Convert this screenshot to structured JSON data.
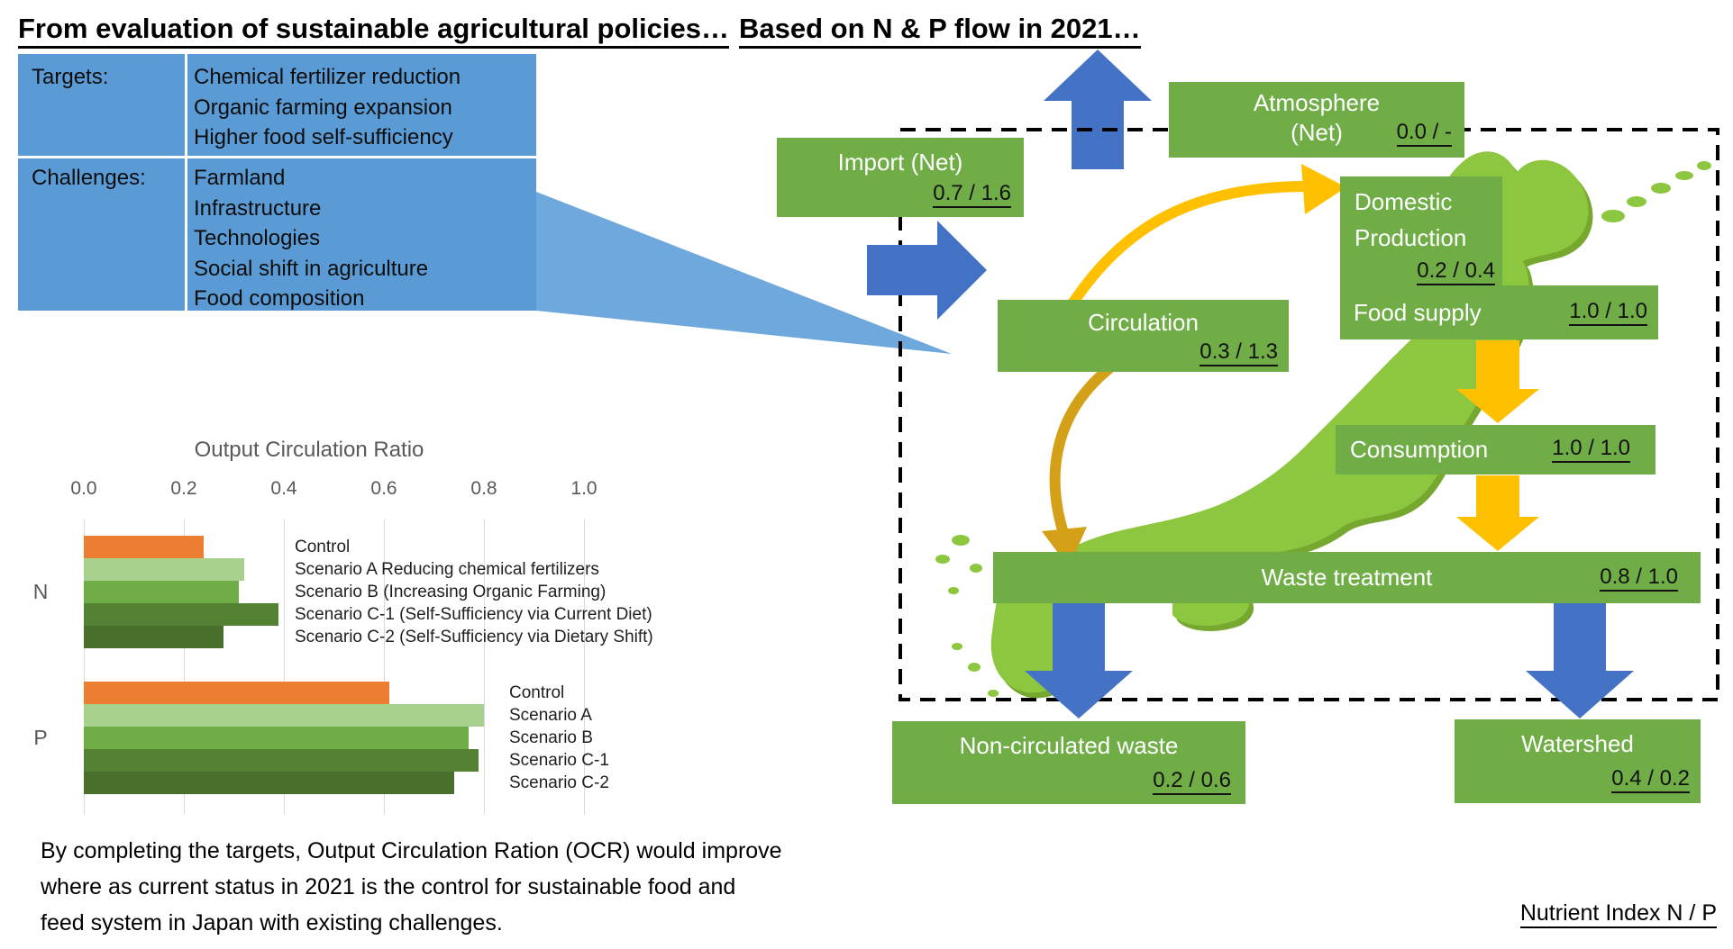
{
  "slide": {
    "left_title": "From evaluation of sustainable agricultural policies…",
    "right_title": "Based on N & P flow in 2021…",
    "note_lines": [
      "By completing the targets, Output Circulation Ration (OCR) would improve",
      "where as current status in 2021 is the control for sustainable food and",
      "feed system in Japan with existing challenges."
    ],
    "nutrient_legend": "Nutrient Index N / P"
  },
  "policy_table": {
    "rows": [
      {
        "label": "Targets:",
        "items": [
          "Chemical fertilizer reduction",
          "Organic farming expansion",
          "Higher food self-sufficiency"
        ]
      },
      {
        "label": "Challenges:",
        "items": [
          "Farmland",
          "Infrastructure",
          "Technologies",
          "Social shift in agriculture",
          "Food composition"
        ]
      }
    ]
  },
  "flow": {
    "import": {
      "label": "Import (Net)",
      "value": "0.7 / 1.6"
    },
    "atmosphere": {
      "line1": "Atmosphere",
      "line2": "(Net)",
      "value": "0.0 / -"
    },
    "circulation": {
      "label": "Circulation",
      "value": "0.3 / 1.3"
    },
    "domestic_production": {
      "line1": "Domestic",
      "line2": "Production",
      "value": "0.2 / 0.4"
    },
    "food_supply": {
      "label": "Food supply",
      "value": "1.0 / 1.0"
    },
    "consumption": {
      "label": "Consumption",
      "value": "1.0 / 1.0"
    },
    "waste_treatment": {
      "label": "Waste treatment",
      "value": "0.8 / 1.0"
    },
    "non_circulated_waste": {
      "label": "Non-circulated waste",
      "value": "0.2 / 0.6"
    },
    "watershed": {
      "label": "Watershed",
      "value": "0.4 / 0.2"
    }
  },
  "chart_data": {
    "type": "bar",
    "orientation": "horizontal",
    "title": "Output Circulation Ratio",
    "xlabel": "",
    "ylabel": "",
    "xlim": [
      0.0,
      1.0
    ],
    "x_ticks": [
      "0.0",
      "0.2",
      "0.4",
      "0.6",
      "0.8",
      "1.0"
    ],
    "grid": true,
    "groups": [
      {
        "category": "N",
        "bars": [
          {
            "label": "Control",
            "value": 0.24,
            "color": "#ED7D31"
          },
          {
            "label": "Scenario A Reducing chemical fertilizers",
            "value": 0.32,
            "color": "#A9D18E"
          },
          {
            "label": "Scenario B (Increasing Organic Farming)",
            "value": 0.31,
            "color": "#70AD47"
          },
          {
            "label": "Scenario C-1 (Self-Sufficiency via Current Diet)",
            "value": 0.39,
            "color": "#548235"
          },
          {
            "label": "Scenario C-2 (Self-Sufficiency via Dietary Shift)",
            "value": 0.28,
            "color": "#48702C"
          }
        ]
      },
      {
        "category": "P",
        "bars": [
          {
            "label": "Control",
            "value": 0.61,
            "color": "#ED7D31"
          },
          {
            "label": "Scenario A",
            "value": 0.8,
            "color": "#A9D18E"
          },
          {
            "label": "Scenario B",
            "value": 0.77,
            "color": "#70AD47"
          },
          {
            "label": "Scenario C-1",
            "value": 0.79,
            "color": "#548235"
          },
          {
            "label": "Scenario C-2",
            "value": 0.74,
            "color": "#48702C"
          }
        ]
      }
    ]
  },
  "colors": {
    "table_blue": "#5B9BD5",
    "callout_blue": "#6FA8DC",
    "box_green": "#70AD47",
    "map_green": "#8DC63F",
    "map_shadow": "#76A82F",
    "arrow_blue": "#4472C4",
    "arrow_yellow": "#FFC000",
    "arrow_mustard": "#D4A017",
    "gridline": "#D9D9D9"
  }
}
